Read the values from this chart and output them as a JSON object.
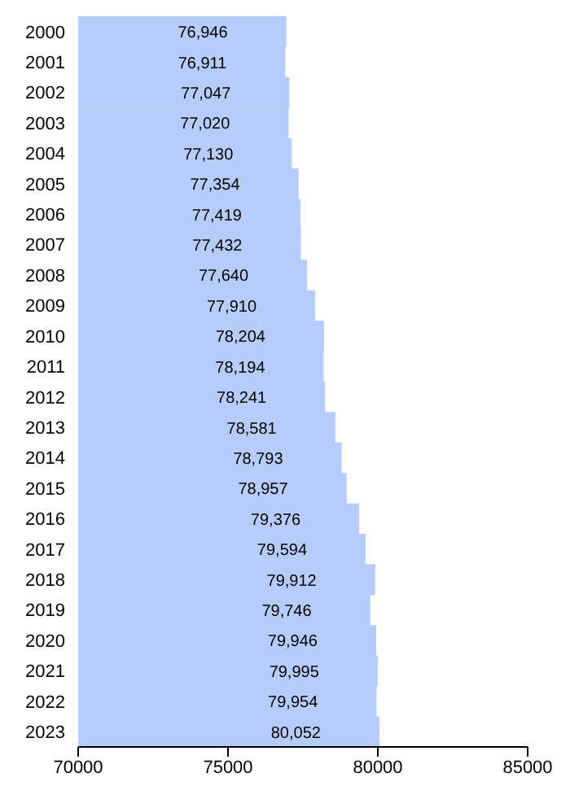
{
  "chart_data": {
    "type": "bar",
    "orientation": "horizontal",
    "categories": [
      "2000",
      "2001",
      "2002",
      "2003",
      "2004",
      "2005",
      "2006",
      "2007",
      "2008",
      "2009",
      "2010",
      "2011",
      "2012",
      "2013",
      "2014",
      "2015",
      "2016",
      "2017",
      "2018",
      "2019",
      "2020",
      "2021",
      "2022",
      "2023"
    ],
    "values": [
      76946,
      76911,
      77047,
      77020,
      77130,
      77354,
      77419,
      77432,
      77640,
      77910,
      78204,
      78194,
      78241,
      78581,
      78793,
      78957,
      79376,
      79594,
      79912,
      79746,
      79946,
      79995,
      79954,
      80052
    ],
    "value_labels": [
      "76,946",
      "76,911",
      "77,047",
      "77,020",
      "77,130",
      "77,354",
      "77,419",
      "77,432",
      "77,640",
      "77,910",
      "78,204",
      "78,194",
      "78,241",
      "78,581",
      "78,793",
      "78,957",
      "79,376",
      "79,594",
      "79,912",
      "79,746",
      "79,946",
      "79,995",
      "79,954",
      "80,052"
    ],
    "color": "#b6ccfb",
    "xlim": [
      70000,
      85000
    ],
    "xticks": [
      70000,
      75000,
      80000,
      85000
    ]
  }
}
